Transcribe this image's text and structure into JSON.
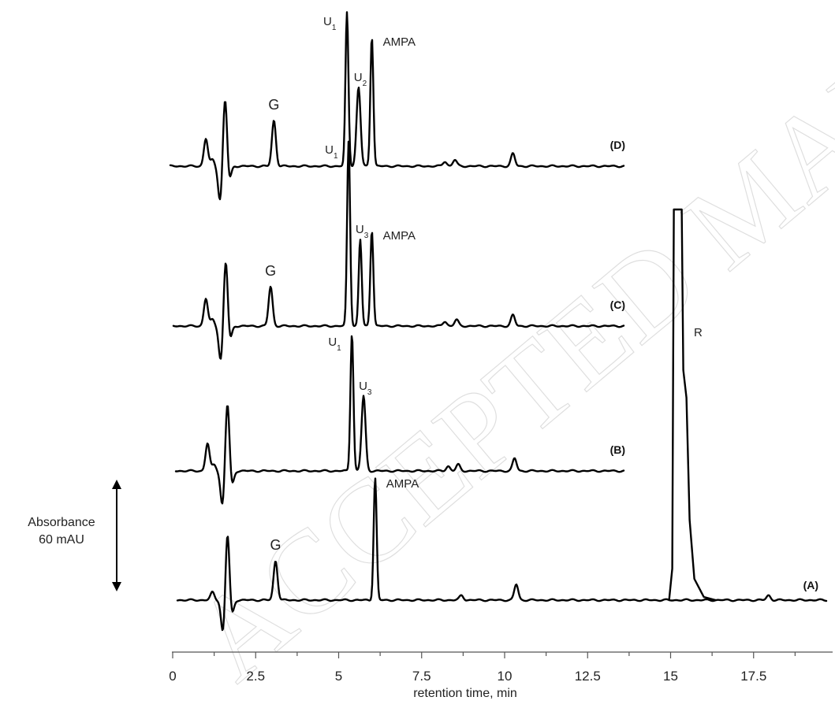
{
  "chart_data": {
    "type": "line",
    "xlabel": "retention time, min",
    "ylabel": "",
    "xlim": [
      0,
      19.7
    ],
    "xticks": [
      "0",
      "2.5",
      "5",
      "7.5",
      "10",
      "12.5",
      "15",
      "17.5"
    ],
    "scale_bar": {
      "line1": "Absorbance",
      "line2": "60 mAU"
    },
    "watermark": "ACCEPTED MANUSCRIPT",
    "series": [
      {
        "name": "(D)",
        "x_end": 13.6,
        "peaks": [
          {
            "t": 1.0,
            "h": 35
          },
          {
            "t": 1.2,
            "h": 8
          },
          {
            "t": 1.58,
            "h": 88
          },
          {
            "t": 1.43,
            "h": -45
          },
          {
            "t": 1.7,
            "h": -20
          },
          {
            "t": 3.05,
            "h": 58
          },
          {
            "t": 5.25,
            "h": 195
          },
          {
            "t": 5.6,
            "h": 100
          },
          {
            "t": 6.0,
            "h": 165
          },
          {
            "t": 8.2,
            "h": 6
          },
          {
            "t": 8.5,
            "h": 8
          },
          {
            "t": 10.25,
            "h": 16
          }
        ],
        "labels": [
          {
            "text": "G",
            "t": 3.05
          },
          {
            "text": "U",
            "sub": "1",
            "t": 5.25
          },
          {
            "text": "U",
            "sub": "2",
            "t": 5.6
          },
          {
            "text": "AMPA",
            "t": 6.0
          }
        ]
      },
      {
        "name": "(C)",
        "x_end": 13.6,
        "peaks": [
          {
            "t": 1.0,
            "h": 35
          },
          {
            "t": 1.2,
            "h": 8
          },
          {
            "t": 1.6,
            "h": 85
          },
          {
            "t": 1.45,
            "h": -45
          },
          {
            "t": 1.72,
            "h": -20
          },
          {
            "t": 2.95,
            "h": 50
          },
          {
            "t": 5.3,
            "h": 235
          },
          {
            "t": 5.65,
            "h": 110
          },
          {
            "t": 6.0,
            "h": 122
          },
          {
            "t": 8.2,
            "h": 6
          },
          {
            "t": 8.55,
            "h": 8
          },
          {
            "t": 10.25,
            "h": 14
          }
        ],
        "labels": [
          {
            "text": "G",
            "t": 2.95
          },
          {
            "text": "U",
            "sub": "1",
            "t": 5.3
          },
          {
            "text": "U",
            "sub": "3",
            "t": 5.65
          },
          {
            "text": "AMPA",
            "t": 6.0
          }
        ]
      },
      {
        "name": "(B)",
        "x_end": 13.6,
        "peaks": [
          {
            "t": 1.05,
            "h": 35
          },
          {
            "t": 1.25,
            "h": 8
          },
          {
            "t": 1.65,
            "h": 88
          },
          {
            "t": 1.5,
            "h": -45
          },
          {
            "t": 1.78,
            "h": -20
          },
          {
            "t": 5.4,
            "h": 175
          },
          {
            "t": 5.75,
            "h": 95
          },
          {
            "t": 8.3,
            "h": 6
          },
          {
            "t": 8.6,
            "h": 8
          },
          {
            "t": 10.3,
            "h": 16
          }
        ],
        "labels": [
          {
            "text": "U",
            "sub": "1",
            "t": 5.4
          },
          {
            "text": "U",
            "sub": "3",
            "t": 5.75
          }
        ]
      },
      {
        "name": "(A)",
        "x_end": 19.7,
        "peaks": [
          {
            "t": 1.2,
            "h": 10
          },
          {
            "t": 1.65,
            "h": 88
          },
          {
            "t": 1.52,
            "h": -45
          },
          {
            "t": 1.78,
            "h": -20
          },
          {
            "t": 3.1,
            "h": 50
          },
          {
            "t": 6.1,
            "h": 155
          },
          {
            "t": 8.7,
            "h": 6
          },
          {
            "t": 10.35,
            "h": 20
          },
          {
            "t": 17.95,
            "h": 6
          }
        ],
        "labels": [
          {
            "text": "G",
            "t": 3.1
          },
          {
            "text": "AMPA",
            "t": 6.1
          },
          {
            "text": "R",
            "t": 15.45
          }
        ]
      }
    ]
  }
}
